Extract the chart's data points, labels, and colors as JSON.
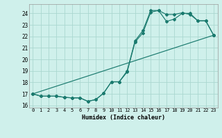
{
  "xlabel": "Humidex (Indice chaleur)",
  "background_color": "#cff0eb",
  "grid_color": "#aad8d0",
  "line_color": "#1a7a6e",
  "xlim": [
    -0.5,
    23.5
  ],
  "ylim": [
    15.8,
    24.8
  ],
  "yticks": [
    16,
    17,
    18,
    19,
    20,
    21,
    22,
    23,
    24
  ],
  "xticks": [
    0,
    1,
    2,
    3,
    4,
    5,
    6,
    7,
    8,
    9,
    10,
    11,
    12,
    13,
    14,
    15,
    16,
    17,
    18,
    19,
    20,
    21,
    22,
    23
  ],
  "series1_x": [
    0,
    1,
    2,
    3,
    4,
    5,
    6,
    7,
    8,
    9,
    10,
    11,
    12,
    13,
    14,
    15,
    16,
    17,
    18,
    19,
    20,
    21,
    22,
    23
  ],
  "series1_y": [
    17.0,
    16.8,
    16.8,
    16.8,
    16.7,
    16.65,
    16.65,
    16.35,
    16.5,
    17.05,
    18.05,
    18.05,
    19.0,
    21.6,
    22.5,
    24.25,
    24.25,
    23.3,
    23.5,
    24.0,
    24.0,
    23.35,
    23.35,
    22.1
  ],
  "series2_x": [
    0,
    1,
    2,
    3,
    4,
    5,
    6,
    7,
    8,
    9,
    10,
    11,
    12,
    13,
    14,
    15,
    16,
    17,
    18,
    19,
    20,
    21,
    22,
    23
  ],
  "series2_y": [
    17.0,
    16.8,
    16.8,
    16.8,
    16.7,
    16.65,
    16.65,
    16.35,
    16.5,
    17.05,
    18.05,
    18.05,
    18.9,
    21.5,
    22.3,
    24.1,
    24.25,
    23.9,
    23.9,
    24.05,
    23.9,
    23.35,
    23.35,
    22.1
  ],
  "series3_x": [
    0,
    23
  ],
  "series3_y": [
    17.0,
    22.1
  ]
}
